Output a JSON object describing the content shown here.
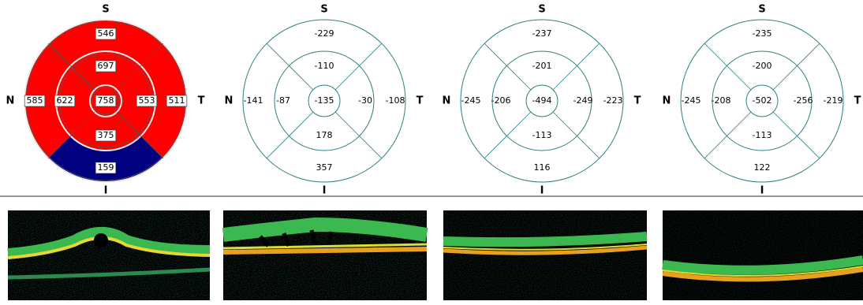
{
  "grids": [
    {
      "labels": {
        "superior": "S",
        "nasal": "N",
        "temporal": "T",
        "inferior": "I"
      },
      "values": {
        "center": 758,
        "inner_superior": 697,
        "inner_nasal": 622,
        "inner_temporal": 553,
        "inner_inferior": 375,
        "outer_superior": 546,
        "outer_nasal": 585,
        "outer_temporal": 511,
        "outer_inferior": 159
      },
      "sector_colors": {
        "center": "#ff0000",
        "inner_superior": "#ff0000",
        "inner_nasal": "#ff0000",
        "inner_temporal": "#ff0000",
        "inner_inferior": "#ff0000",
        "outer_superior": "#ff0000",
        "outer_nasal": "#ff0000",
        "outer_temporal": "#ff0000",
        "outer_inferior": "#000080"
      }
    },
    {
      "labels": {
        "superior": "S",
        "nasal": "N",
        "temporal": "T",
        "inferior": "I"
      },
      "values": {
        "center": -135,
        "inner_superior": -110,
        "inner_nasal": -87,
        "inner_temporal": -30,
        "inner_inferior": 178,
        "outer_superior": -229,
        "outer_nasal": -141,
        "outer_temporal": -108,
        "outer_inferior": 357
      }
    },
    {
      "labels": {
        "superior": "S",
        "nasal": "N",
        "temporal": "T",
        "inferior": "I"
      },
      "values": {
        "center": -494,
        "inner_superior": -201,
        "inner_nasal": -206,
        "inner_temporal": -249,
        "inner_inferior": -113,
        "outer_superior": -237,
        "outer_nasal": -245,
        "outer_temporal": -223,
        "outer_inferior": 116
      }
    },
    {
      "labels": {
        "superior": "S",
        "nasal": "N",
        "temporal": "T",
        "inferior": "I"
      },
      "values": {
        "center": -502,
        "inner_superior": -200,
        "inner_nasal": -208,
        "inner_temporal": -256,
        "inner_inferior": -113,
        "outer_superior": -235,
        "outer_nasal": -245,
        "outer_temporal": -219,
        "outer_inferior": 122
      }
    }
  ]
}
